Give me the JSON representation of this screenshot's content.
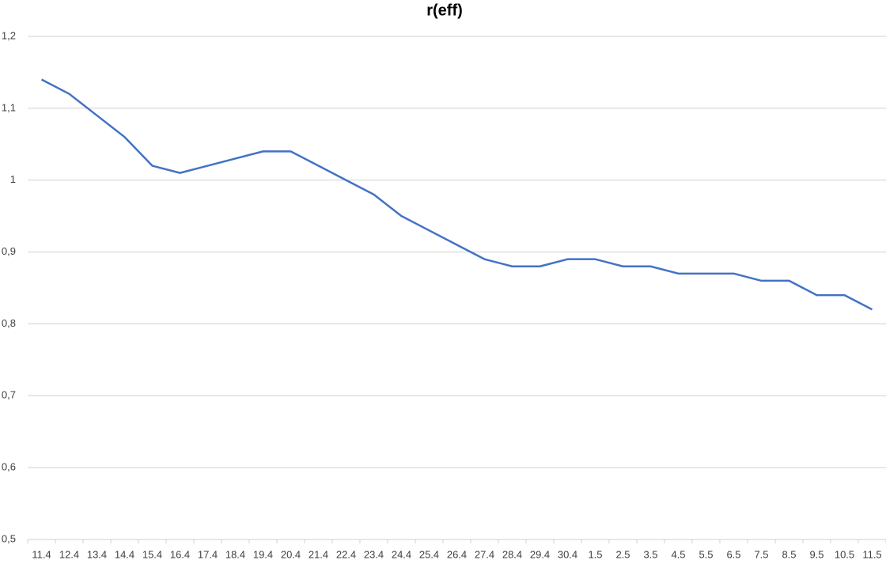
{
  "chart_data": {
    "type": "line",
    "title": "r(eff)",
    "categories": [
      "11.4",
      "12.4",
      "13.4",
      "14.4",
      "15.4",
      "16.4",
      "17.4",
      "18.4",
      "19.4",
      "20.4",
      "21.4",
      "22.4",
      "23.4",
      "24.4",
      "25.4",
      "26.4",
      "27.4",
      "28.4",
      "29.4",
      "30.4",
      "1.5",
      "2.5",
      "3.5",
      "4.5",
      "5.5",
      "6.5",
      "7.5",
      "8.5",
      "9.5",
      "10.5",
      "11.5"
    ],
    "series": [
      {
        "name": "r(eff)",
        "color": "#4472c4",
        "values": [
          1.14,
          1.12,
          1.09,
          1.06,
          1.02,
          1.01,
          1.02,
          1.03,
          1.04,
          1.04,
          1.02,
          1.0,
          0.98,
          0.95,
          0.93,
          0.91,
          0.89,
          0.88,
          0.88,
          0.89,
          0.89,
          0.88,
          0.88,
          0.87,
          0.87,
          0.87,
          0.86,
          0.86,
          0.84,
          0.84,
          0.82
        ]
      }
    ],
    "ylim": [
      0.5,
      1.2
    ],
    "yticks": [
      {
        "value": 0.5,
        "label": "0,5"
      },
      {
        "value": 0.6,
        "label": "0,6"
      },
      {
        "value": 0.7,
        "label": "0,7"
      },
      {
        "value": 0.8,
        "label": "0,8"
      },
      {
        "value": 0.9,
        "label": "0,9"
      },
      1,
      {
        "value": 1.1,
        "label": "1,1"
      },
      {
        "value": 1.2,
        "label": "1,2"
      }
    ],
    "grid": true
  }
}
